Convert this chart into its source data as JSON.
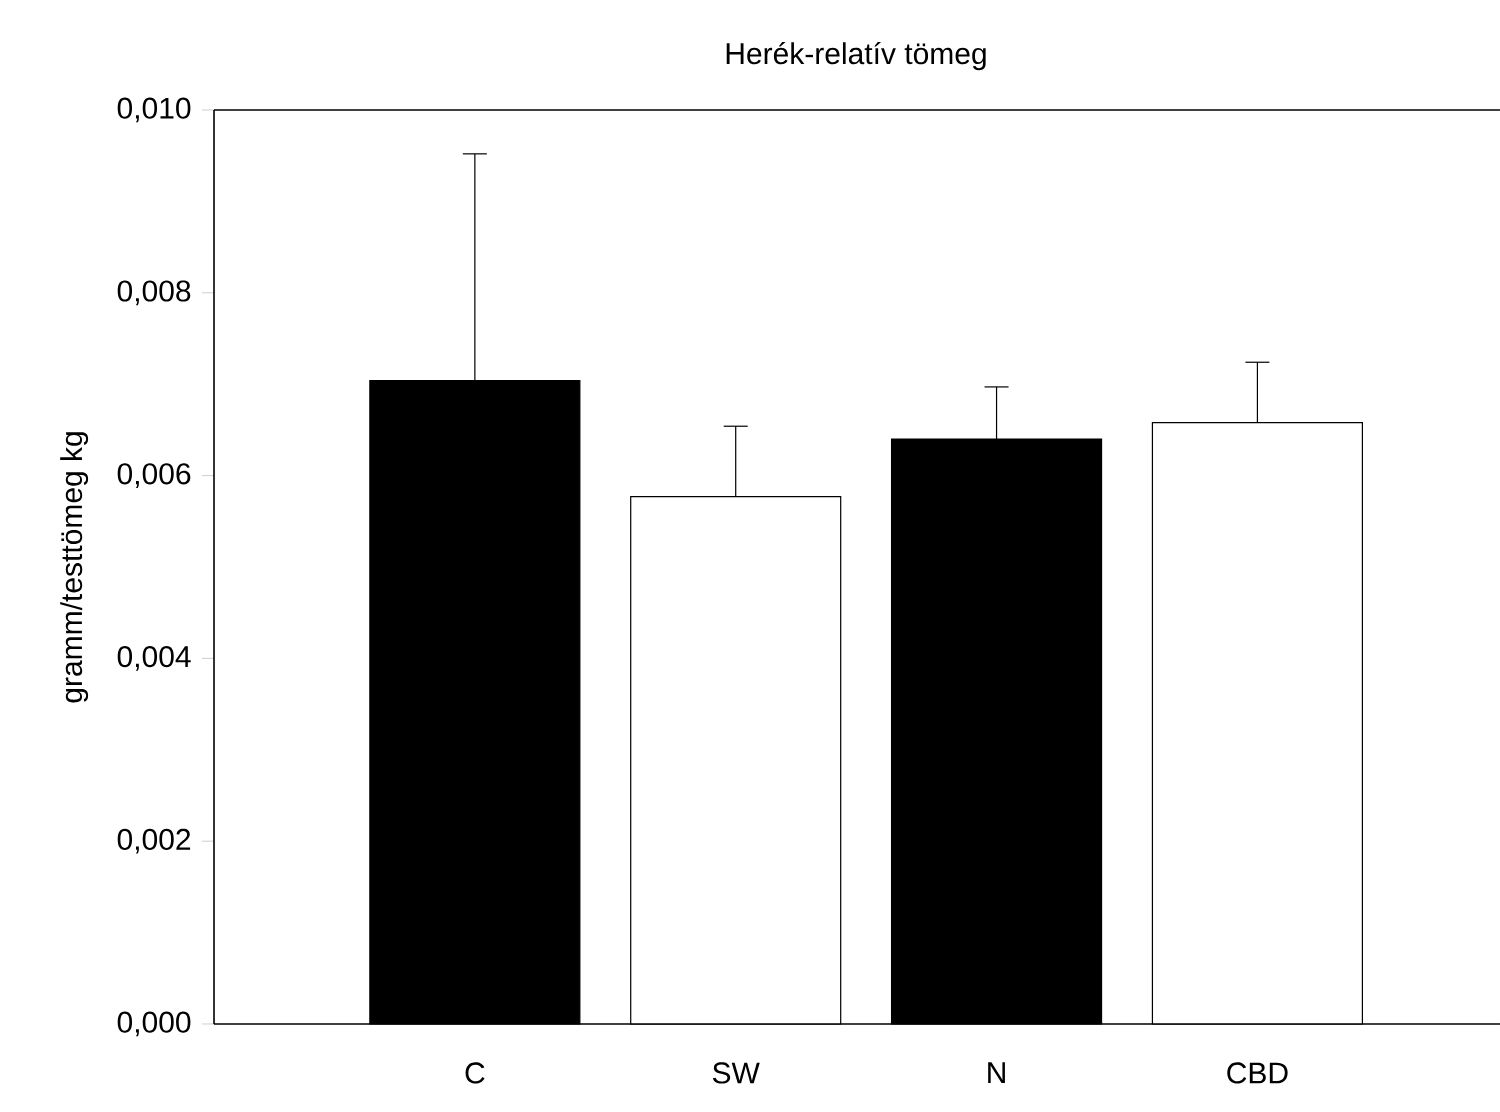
{
  "chart_data": {
    "type": "bar",
    "title": "Herék-relatív tömeg",
    "ylabel": "gramm/testtömeg kg",
    "categories": [
      "C",
      "SW",
      "N",
      "CBD"
    ],
    "values": [
      0.00704,
      0.00577,
      0.0064,
      0.00658
    ],
    "errors": [
      [
        0.00704,
        0.00952
      ],
      [
        0.00577,
        0.00654
      ],
      [
        0.0064,
        0.00697
      ],
      [
        0.00658,
        0.00724
      ]
    ],
    "colors": [
      "#000000",
      "#ffffff",
      "#000000",
      "#ffffff"
    ],
    "ylim": [
      0,
      0.01
    ],
    "yticks": [
      {
        "value": 0,
        "label": "0,000"
      },
      {
        "value": 0.002,
        "label": "0,002"
      },
      {
        "value": 0.004,
        "label": "0,004"
      },
      {
        "value": 0.006,
        "label": "0,006"
      },
      {
        "value": 0.008,
        "label": "0,008"
      },
      {
        "value": 0.01,
        "label": "0,010"
      }
    ],
    "grid": false
  }
}
